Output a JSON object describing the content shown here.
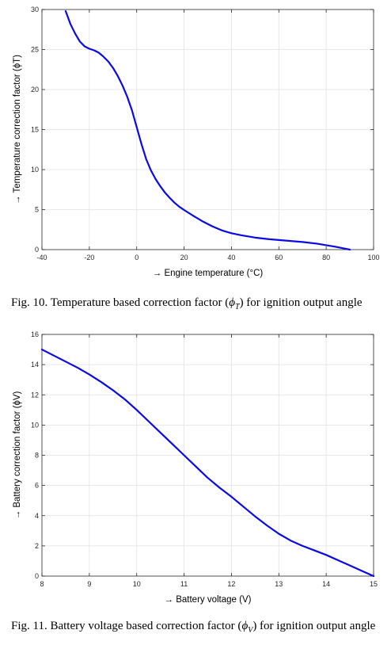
{
  "chart_data": [
    {
      "type": "line",
      "xlabel": "→ Engine temperature (°C)",
      "ylabel": "→   Temperature correction factor (ϕT)",
      "xlim": [
        -40,
        100
      ],
      "ylim": [
        0,
        30
      ],
      "xticks": [
        -40,
        -20,
        0,
        20,
        40,
        60,
        80,
        100
      ],
      "yticks": [
        0,
        5,
        10,
        15,
        20,
        25,
        30
      ],
      "grid": true,
      "series": [
        {
          "color": "#0a0ae6",
          "x": [
            -30,
            -28,
            -26,
            -24,
            -22,
            -20,
            -18,
            -16,
            -14,
            -12,
            -10,
            -8,
            -6,
            -4,
            -2,
            0,
            2,
            4,
            6,
            8,
            10,
            12,
            14,
            16,
            18,
            20,
            24,
            28,
            32,
            36,
            40,
            44,
            50,
            56,
            60,
            66,
            70,
            76,
            80,
            84,
            88,
            90
          ],
          "y": [
            29.8,
            28.2,
            27.0,
            26.0,
            25.4,
            25.1,
            24.9,
            24.6,
            24.1,
            23.5,
            22.7,
            21.7,
            20.5,
            19.1,
            17.4,
            15.3,
            13.2,
            11.3,
            9.9,
            8.8,
            7.9,
            7.1,
            6.45,
            5.85,
            5.35,
            4.95,
            4.2,
            3.5,
            2.9,
            2.4,
            2.05,
            1.8,
            1.5,
            1.3,
            1.2,
            1.05,
            0.95,
            0.75,
            0.55,
            0.35,
            0.12,
            0.0
          ]
        }
      ]
    },
    {
      "type": "line",
      "xlabel": "→ Battery voltage (V)",
      "ylabel": "→   Battery correction factor (ϕV)",
      "xlim": [
        8,
        15
      ],
      "ylim": [
        0,
        16
      ],
      "xticks": [
        8,
        9,
        10,
        11,
        12,
        13,
        14,
        15
      ],
      "yticks": [
        0,
        2,
        4,
        6,
        8,
        10,
        12,
        14,
        16
      ],
      "grid": true,
      "series": [
        {
          "color": "#0a0ae6",
          "x": [
            8.0,
            8.25,
            8.5,
            8.75,
            9.0,
            9.25,
            9.5,
            9.75,
            10.0,
            10.25,
            10.5,
            10.75,
            11.0,
            11.25,
            11.5,
            11.75,
            12.0,
            12.25,
            12.5,
            12.75,
            13.0,
            13.25,
            13.5,
            13.75,
            14.0,
            14.25,
            14.5,
            14.75,
            15.0
          ],
          "y": [
            15.0,
            14.6,
            14.2,
            13.8,
            13.35,
            12.85,
            12.3,
            11.7,
            11.0,
            10.25,
            9.5,
            8.75,
            8.0,
            7.25,
            6.5,
            5.85,
            5.25,
            4.6,
            3.95,
            3.35,
            2.8,
            2.35,
            2.0,
            1.7,
            1.4,
            1.05,
            0.7,
            0.35,
            0.0
          ]
        }
      ]
    }
  ],
  "captions": {
    "fig10_prefix": "Fig. 10.  Temperature based correction factor (",
    "fig10_symbol": "ϕ",
    "fig10_sub": "T",
    "fig10_suffix": ") for ignition output angle",
    "fig11_prefix": "Fig. 11.  Battery voltage based correction factor (",
    "fig11_symbol": "ϕ",
    "fig11_sub": "V",
    "fig11_suffix": ") for ignition output angle"
  }
}
